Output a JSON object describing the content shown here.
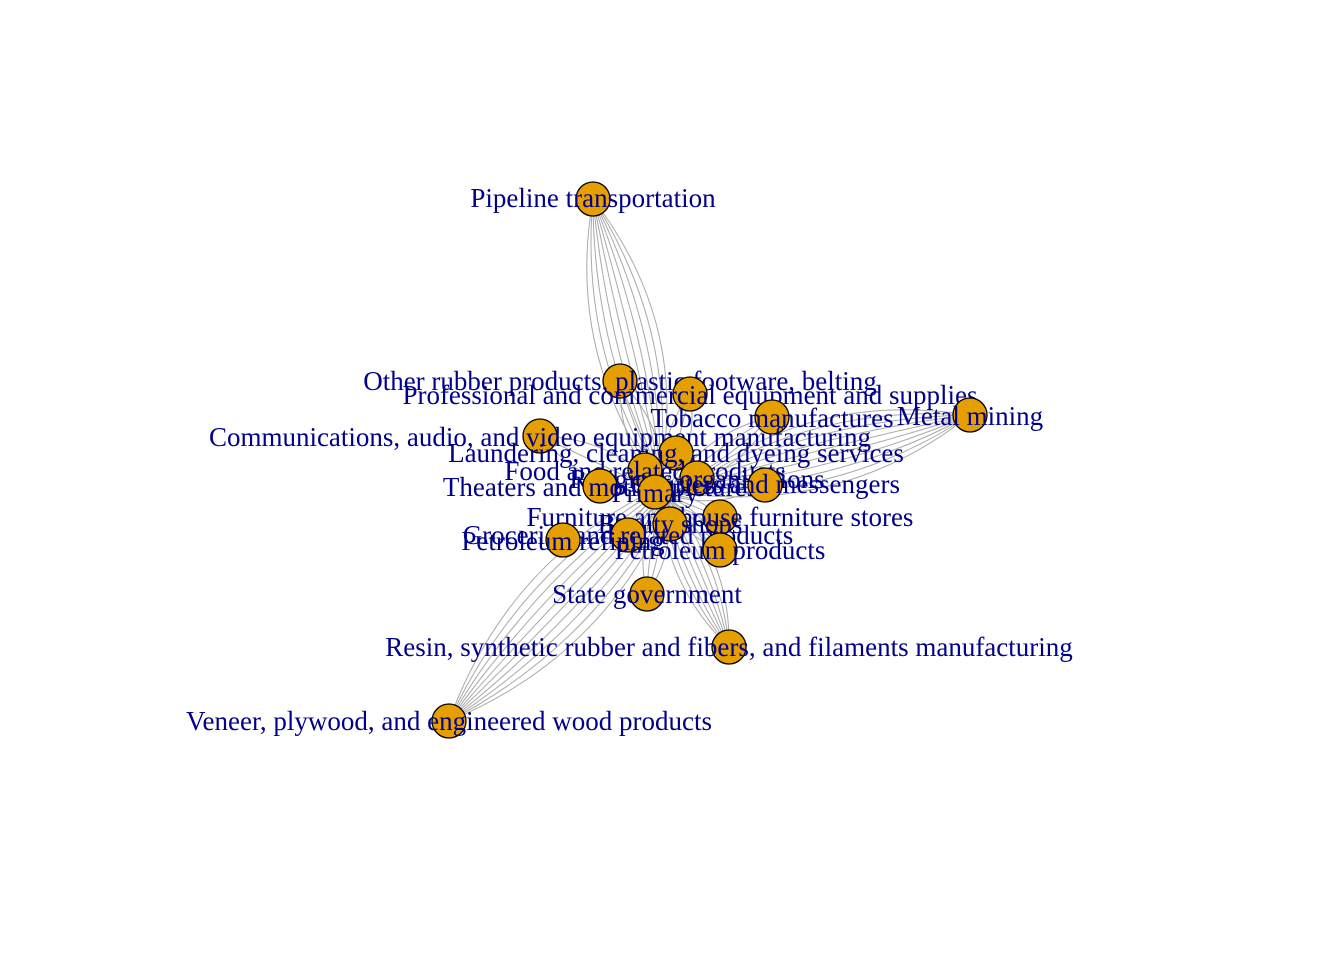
{
  "graph": {
    "colors": {
      "node_fill": "#E69F00",
      "node_stroke": "#000000",
      "edge": "#A9A9A9",
      "label": "#00008B",
      "background": "#FFFFFF"
    },
    "nodes": [
      {
        "id": "pipeline",
        "label": "Pipeline transportation"
      },
      {
        "id": "other-rubber",
        "label": "Other rubber products, plastic footware, belting"
      },
      {
        "id": "professional",
        "label": "Professional and commercial equipment and supplies"
      },
      {
        "id": "tobacco",
        "label": "Tobacco manufactures"
      },
      {
        "id": "metal-mining",
        "label": "Metal mining"
      },
      {
        "id": "communications",
        "label": "Communications, audio, and video equipment manufacturing"
      },
      {
        "id": "laundering",
        "label": "Laundering, cleaning, and dyeing services"
      },
      {
        "id": "food",
        "label": "Food and related products"
      },
      {
        "id": "religious",
        "label": "Religious organizations"
      },
      {
        "id": "theaters",
        "label": "Theaters and motion pictures"
      },
      {
        "id": "couriers",
        "label": "Couriers and messengers"
      },
      {
        "id": "primary",
        "label": "Primary"
      },
      {
        "id": "furniture",
        "label": "Furniture and house furniture stores"
      },
      {
        "id": "beauty",
        "label": "Beauty shops"
      },
      {
        "id": "groceries",
        "label": "Groceries and related products"
      },
      {
        "id": "petroleum-refining",
        "label": "Petroleum refining"
      },
      {
        "id": "petroleum-products",
        "label": "Petroleum products"
      },
      {
        "id": "state-gov",
        "label": "State government"
      },
      {
        "id": "resin",
        "label": "Resin, synthetic rubber and fibers, and filaments manufacturing"
      },
      {
        "id": "veneer",
        "label": "Veneer, plywood, and engineered wood products"
      }
    ],
    "hub_edges": [
      {
        "from": "pipeline",
        "count": 10
      },
      {
        "from": "veneer",
        "count": 10
      },
      {
        "from": "metal-mining",
        "count": 10
      },
      {
        "from": "resin",
        "count": 8
      },
      {
        "from": "other-rubber",
        "count": 3
      },
      {
        "from": "professional",
        "count": 3
      },
      {
        "from": "tobacco",
        "count": 4
      },
      {
        "from": "communications",
        "count": 3
      },
      {
        "from": "couriers",
        "count": 4
      },
      {
        "from": "state-gov",
        "count": 4
      },
      {
        "from": "petroleum-products",
        "count": 4
      },
      {
        "from": "groceries",
        "count": 3
      },
      {
        "from": "furniture",
        "count": 3
      }
    ]
  }
}
